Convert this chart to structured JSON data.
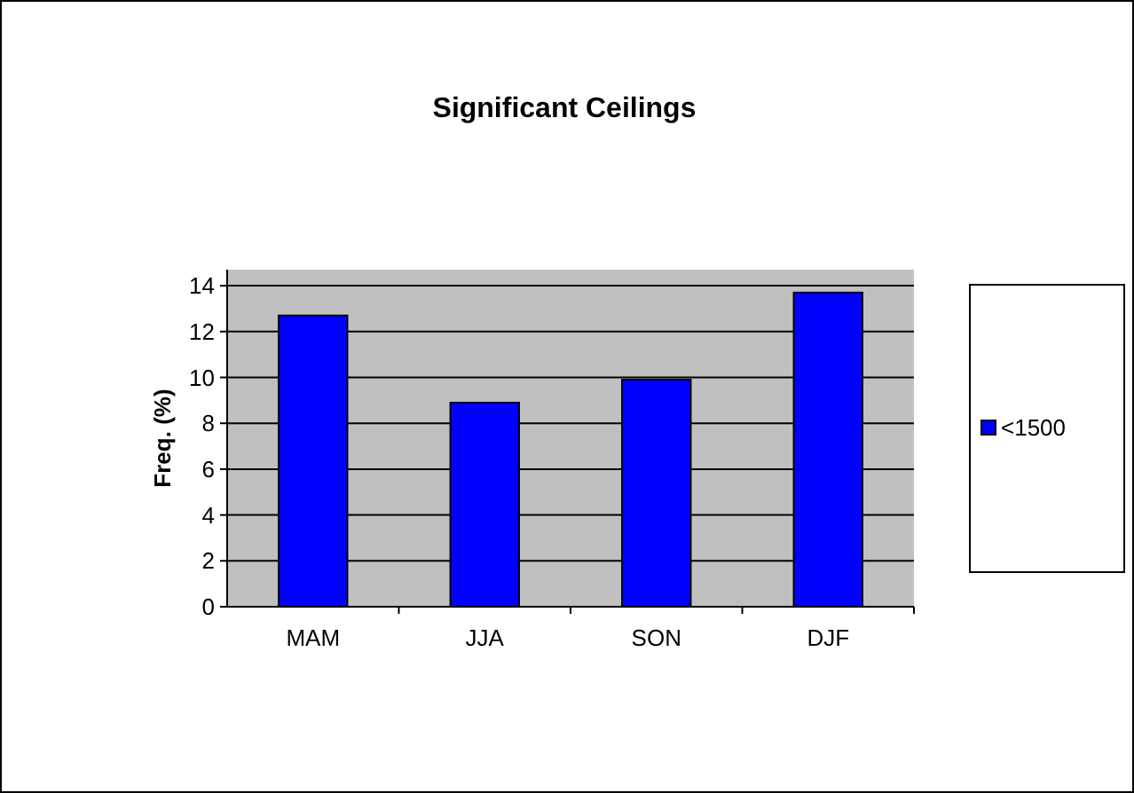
{
  "chart_data": {
    "type": "bar",
    "title": "Significant Ceilings",
    "ylabel": "Freq. (%)",
    "categories": [
      "MAM",
      "JJA",
      "SON",
      "DJF"
    ],
    "series": [
      {
        "name": "<1500",
        "color": "#0000ff",
        "values": [
          12.7,
          8.9,
          9.9,
          13.7
        ]
      }
    ],
    "ylim": [
      0,
      14.7
    ],
    "yticks": [
      0,
      2,
      4,
      6,
      8,
      10,
      12,
      14
    ],
    "grid": "y",
    "legend": "right"
  }
}
